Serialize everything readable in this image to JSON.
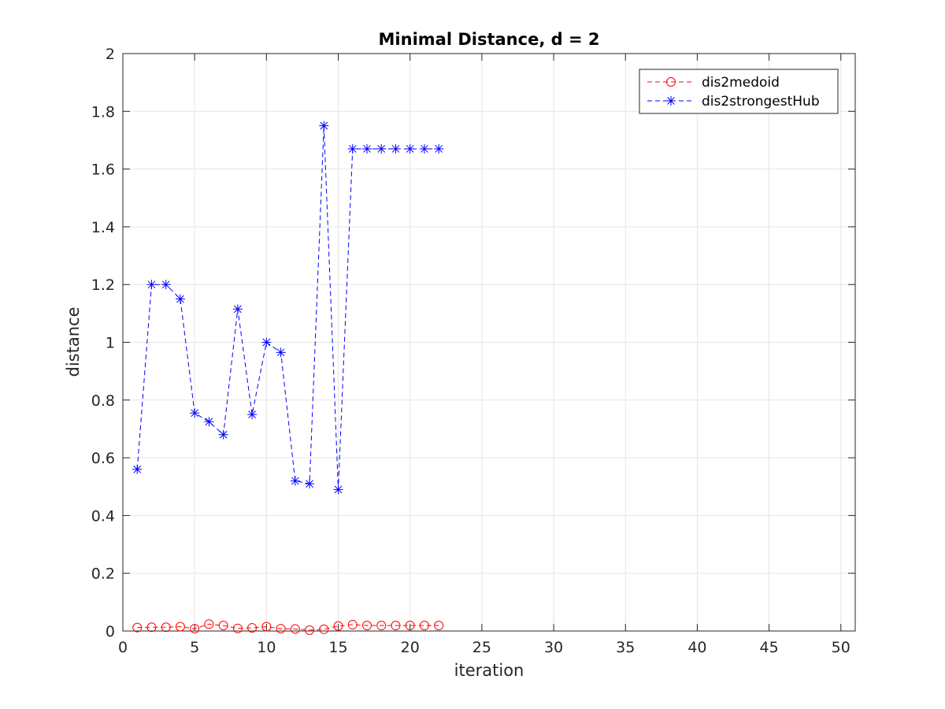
{
  "chart_data": {
    "type": "line",
    "title": "Minimal Distance, d = 2",
    "xlabel": "iteration",
    "ylabel": "distance",
    "xlim": [
      0,
      51
    ],
    "ylim": [
      0,
      2
    ],
    "xticks": [
      "0",
      "5",
      "10",
      "15",
      "20",
      "25",
      "30",
      "35",
      "40",
      "45",
      "50"
    ],
    "yticks": [
      "0",
      "0.2",
      "0.4",
      "0.6",
      "0.8",
      "1",
      "1.2",
      "1.4",
      "1.6",
      "1.8",
      "2"
    ],
    "grid": true,
    "legend_position": "top-right",
    "x": [
      1,
      2,
      3,
      4,
      5,
      6,
      7,
      8,
      9,
      10,
      11,
      12,
      13,
      14,
      15,
      16,
      17,
      18,
      19,
      20,
      21,
      22
    ],
    "series": [
      {
        "name": "dis2medoid",
        "color": "#ff0000",
        "marker": "circle",
        "line_style": "dashed",
        "values": [
          0.012,
          0.013,
          0.013,
          0.015,
          0.008,
          0.024,
          0.019,
          0.009,
          0.011,
          0.015,
          0.008,
          0.007,
          0.003,
          0.006,
          0.017,
          0.022,
          0.019,
          0.019,
          0.019,
          0.019,
          0.019,
          0.019
        ]
      },
      {
        "name": "dis2strongestHub",
        "color": "#0000ff",
        "marker": "asterisk",
        "line_style": "dashed",
        "values": [
          0.56,
          1.2,
          1.2,
          1.15,
          0.755,
          0.725,
          0.68,
          1.115,
          0.75,
          1.0,
          0.965,
          0.52,
          0.51,
          1.75,
          0.49,
          1.67,
          1.67,
          1.67,
          1.67,
          1.67,
          1.67,
          1.67
        ]
      }
    ]
  }
}
